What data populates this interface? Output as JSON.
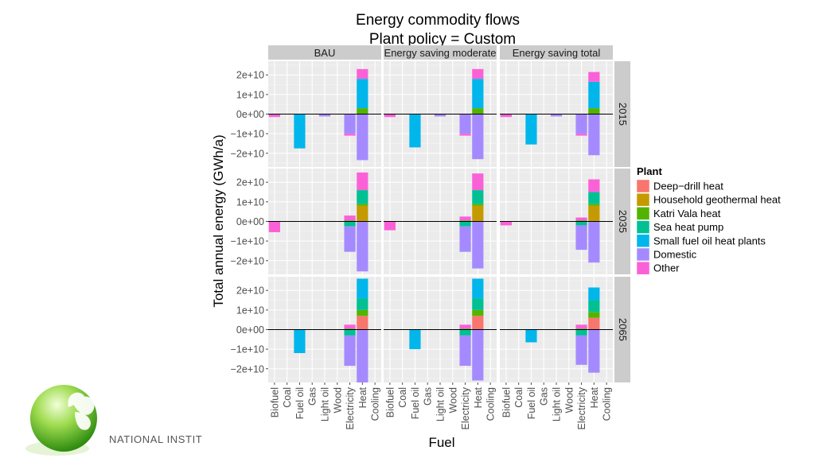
{
  "chart_data": {
    "type": "bar",
    "stacked": true,
    "title": "Energy commodity flows",
    "subtitle": "Plant policy = Custom",
    "xlabel": "Fuel",
    "ylabel": "Total annual energy (GWh/a)",
    "ylim": [
      -27000000000.0,
      27000000000.0
    ],
    "yticks": [
      20000000000.0,
      10000000000.0,
      0,
      -10000000000.0,
      -20000000000.0
    ],
    "ytick_labels": [
      "2e+10",
      "1e+10",
      "0e+00",
      "−1e+10",
      "−2e+10"
    ],
    "categories": [
      "Biofuel",
      "Coal",
      "Fuel oil",
      "Gas",
      "Light oil",
      "Wood",
      "Electricity",
      "Heat",
      "Cooling"
    ],
    "columns": [
      "BAU",
      "Energy saving moderate",
      "Energy saving total"
    ],
    "rows": [
      "2015",
      "2035",
      "2065"
    ],
    "legend": {
      "title": "Plant",
      "position": "right",
      "entries": [
        {
          "name": "Deep−drill heat",
          "color": "#F8766D"
        },
        {
          "name": "Household geothermal heat",
          "color": "#C49A00"
        },
        {
          "name": "Katri Vala heat",
          "color": "#53B400"
        },
        {
          "name": "Sea heat pump",
          "color": "#00C094"
        },
        {
          "name": "Small fuel oil heat plants",
          "color": "#00B6EB"
        },
        {
          "name": "Domestic",
          "color": "#A58AFF"
        },
        {
          "name": "Other",
          "color": "#FB61D7"
        }
      ]
    },
    "panels": [
      {
        "row": "2015",
        "column": "BAU",
        "bars": [
          {
            "category": "Biofuel",
            "plant": "Other",
            "value": -1500000000.0
          },
          {
            "category": "Fuel oil",
            "plant": "Small fuel oil heat plants",
            "value": -17500000000.0
          },
          {
            "category": "Light oil",
            "plant": "Domestic",
            "value": -1200000000.0
          },
          {
            "category": "Electricity",
            "plant": "Domestic",
            "value": -10000000000.0
          },
          {
            "category": "Electricity",
            "plant": "Other",
            "value": -1000000000.0
          },
          {
            "category": "Heat",
            "plant": "Katri Vala heat",
            "value": 3000000000.0
          },
          {
            "category": "Heat",
            "plant": "Small fuel oil heat plants",
            "value": 15000000000.0
          },
          {
            "category": "Heat",
            "plant": "Other",
            "value": 5000000000.0
          },
          {
            "category": "Heat",
            "plant": "Domestic",
            "value": -23500000000.0
          }
        ]
      },
      {
        "row": "2015",
        "column": "Energy saving moderate",
        "bars": [
          {
            "category": "Biofuel",
            "plant": "Other",
            "value": -1500000000.0
          },
          {
            "category": "Fuel oil",
            "plant": "Small fuel oil heat plants",
            "value": -17000000000.0
          },
          {
            "category": "Light oil",
            "plant": "Domestic",
            "value": -1200000000.0
          },
          {
            "category": "Electricity",
            "plant": "Domestic",
            "value": -10000000000.0
          },
          {
            "category": "Electricity",
            "plant": "Other",
            "value": -1000000000.0
          },
          {
            "category": "Heat",
            "plant": "Katri Vala heat",
            "value": 3000000000.0
          },
          {
            "category": "Heat",
            "plant": "Small fuel oil heat plants",
            "value": 15000000000.0
          },
          {
            "category": "Heat",
            "plant": "Other",
            "value": 5000000000.0
          },
          {
            "category": "Heat",
            "plant": "Domestic",
            "value": -23000000000.0
          }
        ]
      },
      {
        "row": "2015",
        "column": "Energy saving total",
        "bars": [
          {
            "category": "Biofuel",
            "plant": "Other",
            "value": -1500000000.0
          },
          {
            "category": "Fuel oil",
            "plant": "Small fuel oil heat plants",
            "value": -15500000000.0
          },
          {
            "category": "Light oil",
            "plant": "Domestic",
            "value": -1200000000.0
          },
          {
            "category": "Electricity",
            "plant": "Domestic",
            "value": -10000000000.0
          },
          {
            "category": "Electricity",
            "plant": "Other",
            "value": -1000000000.0
          },
          {
            "category": "Heat",
            "plant": "Katri Vala heat",
            "value": 3000000000.0
          },
          {
            "category": "Heat",
            "plant": "Small fuel oil heat plants",
            "value": 13500000000.0
          },
          {
            "category": "Heat",
            "plant": "Other",
            "value": 5000000000.0
          },
          {
            "category": "Heat",
            "plant": "Domestic",
            "value": -21000000000.0
          }
        ]
      },
      {
        "row": "2035",
        "column": "BAU",
        "bars": [
          {
            "category": "Biofuel",
            "plant": "Other",
            "value": -5500000000.0
          },
          {
            "category": "Electricity",
            "plant": "Katri Vala heat",
            "value": 500000000.0
          },
          {
            "category": "Electricity",
            "plant": "Other",
            "value": 2500000000.0
          },
          {
            "category": "Electricity",
            "plant": "Sea heat pump",
            "value": -2500000000.0
          },
          {
            "category": "Electricity",
            "plant": "Domestic",
            "value": -13000000000.0
          },
          {
            "category": "Heat",
            "plant": "Household geothermal heat",
            "value": 8000000000.0
          },
          {
            "category": "Heat",
            "plant": "Katri Vala heat",
            "value": 1000000000.0
          },
          {
            "category": "Heat",
            "plant": "Sea heat pump",
            "value": 7000000000.0
          },
          {
            "category": "Heat",
            "plant": "Other",
            "value": 9000000000.0
          },
          {
            "category": "Heat",
            "plant": "Domestic",
            "value": -25500000000.0
          }
        ]
      },
      {
        "row": "2035",
        "column": "Energy saving moderate",
        "bars": [
          {
            "category": "Biofuel",
            "plant": "Other",
            "value": -4500000000.0
          },
          {
            "category": "Electricity",
            "plant": "Katri Vala heat",
            "value": 500000000.0
          },
          {
            "category": "Electricity",
            "plant": "Other",
            "value": 2000000000.0
          },
          {
            "category": "Electricity",
            "plant": "Sea heat pump",
            "value": -2500000000.0
          },
          {
            "category": "Electricity",
            "plant": "Domestic",
            "value": -13000000000.0
          },
          {
            "category": "Heat",
            "plant": "Household geothermal heat",
            "value": 8000000000.0
          },
          {
            "category": "Heat",
            "plant": "Katri Vala heat",
            "value": 1000000000.0
          },
          {
            "category": "Heat",
            "plant": "Sea heat pump",
            "value": 7000000000.0
          },
          {
            "category": "Heat",
            "plant": "Other",
            "value": 8500000000.0
          },
          {
            "category": "Heat",
            "plant": "Domestic",
            "value": -24000000000.0
          }
        ]
      },
      {
        "row": "2035",
        "column": "Energy saving total",
        "bars": [
          {
            "category": "Biofuel",
            "plant": "Other",
            "value": -2000000000.0
          },
          {
            "category": "Electricity",
            "plant": "Katri Vala heat",
            "value": 500000000.0
          },
          {
            "category": "Electricity",
            "plant": "Other",
            "value": 1500000000.0
          },
          {
            "category": "Electricity",
            "plant": "Sea heat pump",
            "value": -2000000000.0
          },
          {
            "category": "Electricity",
            "plant": "Domestic",
            "value": -12500000000.0
          },
          {
            "category": "Heat",
            "plant": "Household geothermal heat",
            "value": 8000000000.0
          },
          {
            "category": "Heat",
            "plant": "Katri Vala heat",
            "value": 1000000000.0
          },
          {
            "category": "Heat",
            "plant": "Sea heat pump",
            "value": 6000000000.0
          },
          {
            "category": "Heat",
            "plant": "Other",
            "value": 6500000000.0
          },
          {
            "category": "Heat",
            "plant": "Domestic",
            "value": -21000000000.0
          }
        ]
      },
      {
        "row": "2065",
        "column": "BAU",
        "bars": [
          {
            "category": "Fuel oil",
            "plant": "Small fuel oil heat plants",
            "value": -12000000000.0
          },
          {
            "category": "Electricity",
            "plant": "Katri Vala heat",
            "value": 500000000.0
          },
          {
            "category": "Electricity",
            "plant": "Other",
            "value": 2000000000.0
          },
          {
            "category": "Electricity",
            "plant": "Sea heat pump",
            "value": -3000000000.0
          },
          {
            "category": "Electricity",
            "plant": "Domestic",
            "value": -15500000000.0
          },
          {
            "category": "Heat",
            "plant": "Deep−drill heat",
            "value": 7000000000.0
          },
          {
            "category": "Heat",
            "plant": "Katri Vala heat",
            "value": 3000000000.0
          },
          {
            "category": "Heat",
            "plant": "Sea heat pump",
            "value": 6000000000.0
          },
          {
            "category": "Heat",
            "plant": "Small fuel oil heat plants",
            "value": 10000000000.0
          },
          {
            "category": "Heat",
            "plant": "Domestic",
            "value": -27000000000.0
          }
        ]
      },
      {
        "row": "2065",
        "column": "Energy saving moderate",
        "bars": [
          {
            "category": "Fuel oil",
            "plant": "Small fuel oil heat plants",
            "value": -10000000000.0
          },
          {
            "category": "Electricity",
            "plant": "Katri Vala heat",
            "value": 500000000.0
          },
          {
            "category": "Electricity",
            "plant": "Other",
            "value": 2000000000.0
          },
          {
            "category": "Electricity",
            "plant": "Sea heat pump",
            "value": -3000000000.0
          },
          {
            "category": "Electricity",
            "plant": "Domestic",
            "value": -15500000000.0
          },
          {
            "category": "Heat",
            "plant": "Deep−drill heat",
            "value": 7000000000.0
          },
          {
            "category": "Heat",
            "plant": "Katri Vala heat",
            "value": 3000000000.0
          },
          {
            "category": "Heat",
            "plant": "Sea heat pump",
            "value": 6000000000.0
          },
          {
            "category": "Heat",
            "plant": "Small fuel oil heat plants",
            "value": 10000000000.0
          },
          {
            "category": "Heat",
            "plant": "Domestic",
            "value": -26000000000.0
          }
        ]
      },
      {
        "row": "2065",
        "column": "Energy saving total",
        "bars": [
          {
            "category": "Fuel oil",
            "plant": "Small fuel oil heat plants",
            "value": -6500000000.0
          },
          {
            "category": "Electricity",
            "plant": "Katri Vala heat",
            "value": 500000000.0
          },
          {
            "category": "Electricity",
            "plant": "Other",
            "value": 2000000000.0
          },
          {
            "category": "Electricity",
            "plant": "Sea heat pump",
            "value": -3000000000.0
          },
          {
            "category": "Electricity",
            "plant": "Domestic",
            "value": -15000000000.0
          },
          {
            "category": "Heat",
            "plant": "Deep−drill heat",
            "value": 6000000000.0
          },
          {
            "category": "Heat",
            "plant": "Katri Vala heat",
            "value": 3000000000.0
          },
          {
            "category": "Heat",
            "plant": "Sea heat pump",
            "value": 6000000000.0
          },
          {
            "category": "Heat",
            "plant": "Small fuel oil heat plants",
            "value": 6500000000.0
          },
          {
            "category": "Heat",
            "plant": "Domestic",
            "value": -22000000000.0
          }
        ]
      }
    ]
  },
  "logo": {
    "text": "NATIONAL INSTIT",
    "color_light": "#c6f08a",
    "color_dark": "#3f9f17"
  }
}
